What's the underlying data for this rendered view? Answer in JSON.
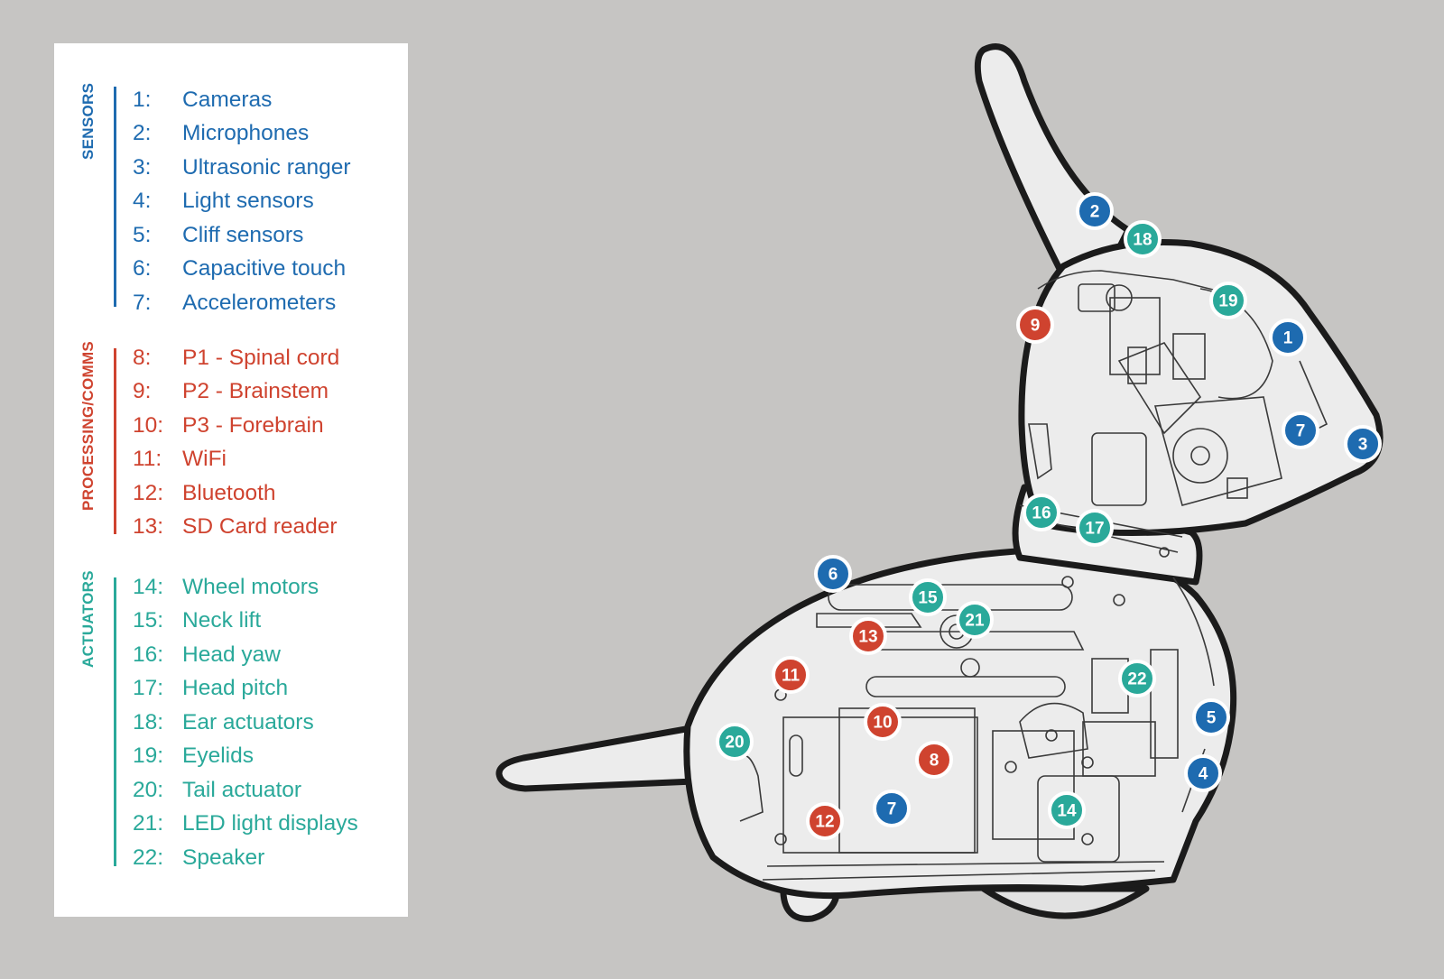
{
  "colors": {
    "sensors": "#1e6bb0",
    "processing": "#cf432f",
    "actuators": "#2aa99a",
    "background": "#c6c5c3",
    "robot_fill": "#ececec",
    "outline": "#1b1b1b"
  },
  "legend": {
    "groups": [
      {
        "key": "sensors",
        "title": "SENSORS",
        "items": [
          {
            "num": "1:",
            "label": "Cameras"
          },
          {
            "num": "2:",
            "label": "Microphones"
          },
          {
            "num": "3:",
            "label": "Ultrasonic ranger"
          },
          {
            "num": "4:",
            "label": "Light sensors"
          },
          {
            "num": "5:",
            "label": "Cliff sensors"
          },
          {
            "num": "6:",
            "label": "Capacitive touch"
          },
          {
            "num": "7:",
            "label": "Accelerometers"
          }
        ]
      },
      {
        "key": "processing",
        "title": "PROCESSING/COMMS",
        "items": [
          {
            "num": "8:",
            "label": "P1 - Spinal cord"
          },
          {
            "num": "9:",
            "label": "P2 - Brainstem"
          },
          {
            "num": "10:",
            "label": "P3 - Forebrain"
          },
          {
            "num": "11:",
            "label": "WiFi"
          },
          {
            "num": "12:",
            "label": "Bluetooth"
          },
          {
            "num": "13:",
            "label": "SD Card reader"
          }
        ]
      },
      {
        "key": "actuators",
        "title": "ACTUATORS",
        "items": [
          {
            "num": "14:",
            "label": "Wheel motors"
          },
          {
            "num": "15:",
            "label": "Neck lift"
          },
          {
            "num": "16:",
            "label": "Head yaw"
          },
          {
            "num": "17:",
            "label": "Head pitch"
          },
          {
            "num": "18:",
            "label": "Ear actuators"
          },
          {
            "num": "19:",
            "label": "Eyelids"
          },
          {
            "num": "20:",
            "label": "Tail actuator"
          },
          {
            "num": "21:",
            "label": "LED light displays"
          },
          {
            "num": "22:",
            "label": "Speaker"
          }
        ]
      }
    ]
  },
  "markers": [
    {
      "label": "1",
      "group": "sensors"
    },
    {
      "label": "2",
      "group": "sensors"
    },
    {
      "label": "3",
      "group": "sensors"
    },
    {
      "label": "4",
      "group": "sensors"
    },
    {
      "label": "5",
      "group": "sensors"
    },
    {
      "label": "6",
      "group": "sensors"
    },
    {
      "label": "7",
      "group": "sensors"
    },
    {
      "label": "7",
      "group": "sensors"
    },
    {
      "label": "8",
      "group": "processing"
    },
    {
      "label": "9",
      "group": "processing"
    },
    {
      "label": "10",
      "group": "processing"
    },
    {
      "label": "11",
      "group": "processing"
    },
    {
      "label": "12",
      "group": "processing"
    },
    {
      "label": "13",
      "group": "processing"
    },
    {
      "label": "14",
      "group": "actuators"
    },
    {
      "label": "15",
      "group": "actuators"
    },
    {
      "label": "16",
      "group": "actuators"
    },
    {
      "label": "17",
      "group": "actuators"
    },
    {
      "label": "18",
      "group": "actuators"
    },
    {
      "label": "19",
      "group": "actuators"
    },
    {
      "label": "20",
      "group": "actuators"
    },
    {
      "label": "21",
      "group": "actuators"
    },
    {
      "label": "22",
      "group": "actuators"
    }
  ]
}
